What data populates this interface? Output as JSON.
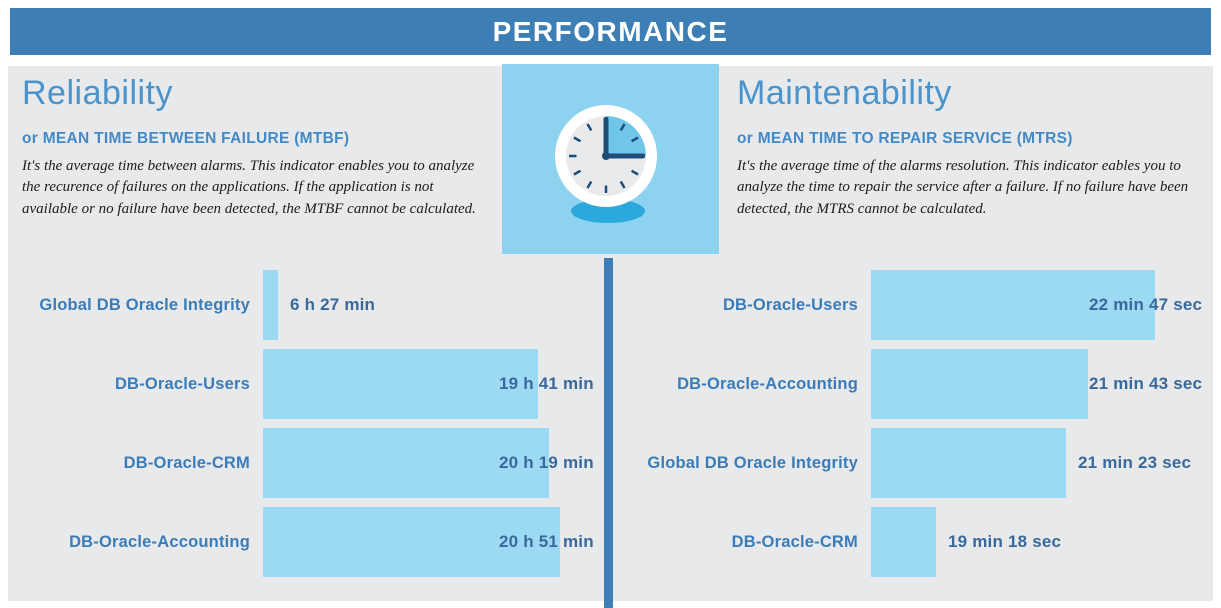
{
  "header": {
    "title": "PERFORMANCE"
  },
  "sections": {
    "left": {
      "title": "Reliability",
      "subtitle": "or MEAN TIME BETWEEN FAILURE (MTBF)",
      "description": "It's the average time between alarms. This indicator enables you to analyze the recurence of failures on the applications. If the application is not available or no failure have been detected, the MTBF cannot be calculated."
    },
    "right": {
      "title": "Maintenability",
      "subtitle": "or MEAN TIME TO REPAIR SERVICE (MTRS)",
      "description": "It's the average time of the alarms resolution. This indicator eables you to analyze the time to repair the service after a failure. If no failure have been detected, the MTRS cannot be calculated."
    }
  },
  "icons": {
    "clock": "clock-icon"
  },
  "colors": {
    "header_bg": "#3D7EB5",
    "panel_bg": "#E8E9EB",
    "bar": "#9CDAF3",
    "divider": "#3D7EB5",
    "section_title": "#4B93CB",
    "section_subtitle": "#4389C6",
    "row_label": "#3B7CB8",
    "bar_value": "#39699B",
    "clock_bg": "#8DD2EF",
    "clock_wedge": "#70C6E9",
    "clock_dark": "#1E4E77",
    "clock_shadow": "#2CA9DC"
  },
  "chart_data": [
    {
      "type": "bar",
      "orientation": "horizontal",
      "title": "Reliability (MTBF)",
      "categories": [
        "Global DB Oracle Integrity",
        "DB-Oracle-Users",
        "DB-Oracle-CRM",
        "DB-Oracle-Accounting"
      ],
      "values_display": [
        "6 h 27 min",
        "19 h 41 min",
        "20 h 19 min",
        "20 h 51 min"
      ],
      "values_minutes": [
        387,
        1181,
        1219,
        1251
      ],
      "bar_fractions": [
        0.045,
        0.826,
        0.859,
        0.892
      ],
      "bar_color": "#9CDAF3",
      "grid": false,
      "legend": false
    },
    {
      "type": "bar",
      "orientation": "horizontal",
      "title": "Maintenability (MTRS)",
      "categories": [
        "DB-Oracle-Users",
        "DB-Oracle-Accounting",
        "Global DB Oracle Integrity",
        "DB-Oracle-CRM"
      ],
      "values_display": [
        "22 min 47 sec",
        "21 min 43 sec",
        "21 min 23 sec",
        "19 min 18 sec"
      ],
      "values_seconds": [
        1367,
        1303,
        1283,
        1158
      ],
      "bar_fractions": [
        0.853,
        0.653,
        0.587,
        0.195
      ],
      "bar_color": "#9CDAF3",
      "grid": false,
      "legend": false
    }
  ]
}
